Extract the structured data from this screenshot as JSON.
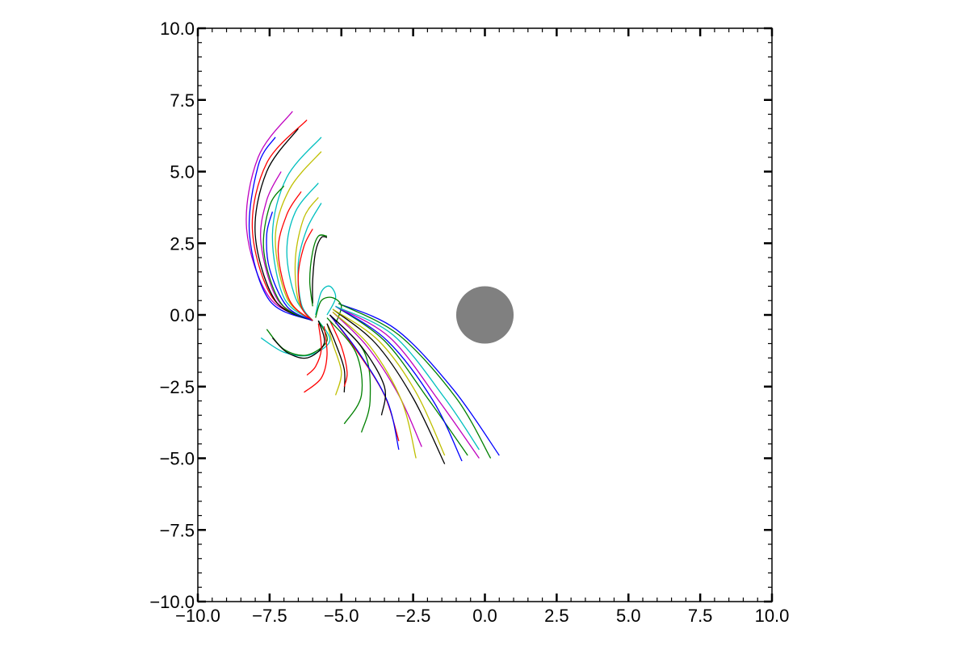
{
  "chart_data": {
    "type": "line",
    "title": "",
    "xlabel": "",
    "ylabel": "",
    "xlim": [
      -10,
      10
    ],
    "ylim": [
      -10,
      10
    ],
    "grid": false,
    "legend": "none",
    "x_ticks": [
      "−10.0",
      "−7.5",
      "−5.0",
      "−2.5",
      "0.0",
      "2.5",
      "5.0",
      "7.5",
      "10.0"
    ],
    "y_ticks": [
      "−10.0",
      "−7.5",
      "−5.0",
      "−2.5",
      "0.0",
      "2.5",
      "5.0",
      "7.5",
      "10.0"
    ],
    "x_tick_values": [
      -10,
      -7.5,
      -5,
      -2.5,
      0,
      2.5,
      5,
      7.5,
      10
    ],
    "y_tick_values": [
      -10,
      -7.5,
      -5,
      -2.5,
      0,
      2.5,
      5,
      7.5,
      10
    ],
    "central_body": {
      "x": 0,
      "y": 0,
      "radius": 1.0,
      "color": "#808080"
    },
    "colors": [
      "#0000ff",
      "#008000",
      "#ff0000",
      "#00bfbf",
      "#bf00bf",
      "#bfbf00",
      "#000000"
    ],
    "series": [
      {
        "color": "#bf00bf",
        "points": [
          [
            -6.0,
            -0.2
          ],
          [
            -7.5,
            0.6
          ],
          [
            -8.3,
            3.0
          ],
          [
            -7.9,
            5.5
          ],
          [
            -6.7,
            7.1
          ]
        ]
      },
      {
        "color": "#ff0000",
        "points": [
          [
            -6.0,
            -0.2
          ],
          [
            -7.4,
            0.6
          ],
          [
            -8.1,
            3.0
          ],
          [
            -7.6,
            5.3
          ],
          [
            -6.2,
            6.8
          ]
        ]
      },
      {
        "color": "#0000ff",
        "points": [
          [
            -6.0,
            -0.2
          ],
          [
            -7.5,
            0.5
          ],
          [
            -8.2,
            2.8
          ],
          [
            -7.9,
            5.2
          ],
          [
            -7.3,
            6.2
          ]
        ]
      },
      {
        "color": "#000000",
        "points": [
          [
            -6.0,
            -0.2
          ],
          [
            -7.3,
            0.5
          ],
          [
            -8.0,
            2.8
          ],
          [
            -7.6,
            5.0
          ],
          [
            -6.5,
            6.5
          ]
        ]
      },
      {
        "color": "#00bfbf",
        "points": [
          [
            -6.0,
            -0.2
          ],
          [
            -7.0,
            0.6
          ],
          [
            -7.4,
            2.8
          ],
          [
            -6.9,
            4.8
          ],
          [
            -5.7,
            6.2
          ]
        ]
      },
      {
        "color": "#bfbf00",
        "points": [
          [
            -6.0,
            -0.2
          ],
          [
            -6.9,
            0.6
          ],
          [
            -7.3,
            2.7
          ],
          [
            -6.8,
            4.4
          ],
          [
            -5.7,
            5.7
          ]
        ]
      },
      {
        "color": "#bf00bf",
        "points": [
          [
            -6.0,
            -0.2
          ],
          [
            -7.2,
            0.5
          ],
          [
            -7.8,
            2.5
          ],
          [
            -7.6,
            4.0
          ],
          [
            -7.1,
            5.0
          ]
        ]
      },
      {
        "color": "#008000",
        "points": [
          [
            -6.0,
            -0.2
          ],
          [
            -7.1,
            0.4
          ],
          [
            -7.7,
            2.2
          ],
          [
            -7.5,
            3.8
          ],
          [
            -7.0,
            4.5
          ]
        ]
      },
      {
        "color": "#ff0000",
        "points": [
          [
            -6.0,
            -0.2
          ],
          [
            -6.8,
            0.5
          ],
          [
            -7.2,
            2.2
          ],
          [
            -6.9,
            3.5
          ],
          [
            -6.4,
            4.3
          ]
        ]
      },
      {
        "color": "#00bfbf",
        "points": [
          [
            -6.0,
            -0.2
          ],
          [
            -6.6,
            0.6
          ],
          [
            -6.9,
            2.2
          ],
          [
            -6.6,
            3.6
          ],
          [
            -5.8,
            4.6
          ]
        ]
      },
      {
        "color": "#bfbf00",
        "points": [
          [
            -6.0,
            -0.2
          ],
          [
            -6.5,
            0.5
          ],
          [
            -6.6,
            2.0
          ],
          [
            -6.3,
            3.4
          ],
          [
            -5.8,
            4.1
          ]
        ]
      },
      {
        "color": "#00bfbf",
        "points": [
          [
            -6.0,
            -0.2
          ],
          [
            -6.4,
            0.4
          ],
          [
            -6.5,
            1.8
          ],
          [
            -6.2,
            3.0
          ],
          [
            -5.7,
            3.9
          ]
        ]
      },
      {
        "color": "#0000ff",
        "points": [
          [
            -6.0,
            -0.2
          ],
          [
            -6.9,
            0.3
          ],
          [
            -7.5,
            1.6
          ],
          [
            -7.6,
            2.8
          ],
          [
            -7.4,
            3.6
          ]
        ]
      },
      {
        "color": "#ff0000",
        "points": [
          [
            -6.0,
            -0.2
          ],
          [
            -6.4,
            0.3
          ],
          [
            -6.5,
            1.4
          ],
          [
            -6.3,
            2.4
          ],
          [
            -6.0,
            3.0
          ]
        ]
      },
      {
        "color": "#000000",
        "points": [
          [
            -6.0,
            0.4
          ],
          [
            -6.0,
            1.2
          ],
          [
            -5.9,
            2.2
          ],
          [
            -5.7,
            2.7
          ],
          [
            -5.5,
            2.7
          ]
        ]
      },
      {
        "color": "#008000",
        "points": [
          [
            -6.0,
            0.3
          ],
          [
            -6.1,
            1.2
          ],
          [
            -6.0,
            2.2
          ],
          [
            -5.8,
            2.75
          ],
          [
            -5.5,
            2.75
          ]
        ]
      },
      {
        "color": "#00bfbf",
        "points": [
          [
            -5.9,
            0.0
          ],
          [
            -5.7,
            0.8
          ],
          [
            -5.4,
            1.0
          ],
          [
            -5.2,
            0.6
          ],
          [
            -5.5,
            0.0
          ]
        ]
      },
      {
        "color": "#008000",
        "points": [
          [
            -5.9,
            -0.1
          ],
          [
            -5.7,
            0.5
          ],
          [
            -5.3,
            0.6
          ],
          [
            -5.0,
            0.3
          ],
          [
            -5.2,
            -0.3
          ]
        ]
      },
      {
        "color": "#00bfbf",
        "points": [
          [
            -5.8,
            -0.2
          ],
          [
            -5.4,
            -0.9
          ],
          [
            -6.1,
            -1.4
          ],
          [
            -7.0,
            -1.3
          ],
          [
            -7.8,
            -0.8
          ]
        ]
      },
      {
        "color": "#008000",
        "points": [
          [
            -5.8,
            -0.2
          ],
          [
            -5.5,
            -0.9
          ],
          [
            -6.2,
            -1.4
          ],
          [
            -7.0,
            -1.2
          ],
          [
            -7.6,
            -0.5
          ]
        ]
      },
      {
        "color": "#000000",
        "points": [
          [
            -5.8,
            -0.2
          ],
          [
            -5.6,
            -1.0
          ],
          [
            -6.2,
            -1.5
          ],
          [
            -6.9,
            -1.3
          ],
          [
            -7.4,
            -0.8
          ]
        ]
      },
      {
        "color": "#ff0000",
        "points": [
          [
            -5.8,
            -0.3
          ],
          [
            -5.7,
            -1.2
          ],
          [
            -5.9,
            -1.8
          ],
          [
            -6.2,
            -2.1
          ]
        ]
      },
      {
        "color": "#ff0000",
        "points": [
          [
            -5.6,
            -0.4
          ],
          [
            -5.5,
            -1.4
          ],
          [
            -5.7,
            -2.2
          ],
          [
            -6.3,
            -2.7
          ]
        ]
      },
      {
        "color": "#bfbf00",
        "points": [
          [
            -5.5,
            -0.3
          ],
          [
            -5.3,
            -1.0
          ],
          [
            -5.0,
            -2.0
          ],
          [
            -5.2,
            -2.8
          ]
        ]
      },
      {
        "color": "#000000",
        "points": [
          [
            -5.5,
            -0.3
          ],
          [
            -5.2,
            -1.0
          ],
          [
            -4.9,
            -1.9
          ],
          [
            -4.9,
            -2.7
          ]
        ]
      },
      {
        "color": "#ff0000",
        "points": [
          [
            -5.4,
            -0.2
          ],
          [
            -5.0,
            -1.1
          ],
          [
            -4.8,
            -2.0
          ],
          [
            -4.9,
            -2.5
          ]
        ]
      },
      {
        "color": "#008000",
        "points": [
          [
            -5.5,
            -0.1
          ],
          [
            -4.5,
            -1.3
          ],
          [
            -4.3,
            -2.8
          ],
          [
            -4.9,
            -3.8
          ]
        ]
      },
      {
        "color": "#008000",
        "points": [
          [
            -5.4,
            0.0
          ],
          [
            -4.2,
            -1.3
          ],
          [
            -4.0,
            -3.0
          ],
          [
            -4.3,
            -4.1
          ]
        ]
      },
      {
        "color": "#ff0000",
        "points": [
          [
            -5.4,
            0.0
          ],
          [
            -4.5,
            -1.2
          ],
          [
            -3.5,
            -2.8
          ],
          [
            -3.0,
            -4.4
          ]
        ]
      },
      {
        "color": "#0000ff",
        "points": [
          [
            -5.4,
            0.0
          ],
          [
            -4.4,
            -1.3
          ],
          [
            -3.4,
            -3.0
          ],
          [
            -3.0,
            -4.7
          ]
        ]
      },
      {
        "color": "#000000",
        "points": [
          [
            -5.4,
            0.0
          ],
          [
            -4.3,
            -1.1
          ],
          [
            -3.5,
            -2.5
          ],
          [
            -3.6,
            -3.5
          ]
        ]
      },
      {
        "color": "#bf00bf",
        "points": [
          [
            -5.3,
            0.1
          ],
          [
            -4.1,
            -1.1
          ],
          [
            -3.0,
            -2.8
          ],
          [
            -2.2,
            -4.6
          ]
        ]
      },
      {
        "color": "#bfbf00",
        "points": [
          [
            -5.3,
            0.1
          ],
          [
            -4.0,
            -1.1
          ],
          [
            -2.9,
            -3.0
          ],
          [
            -2.4,
            -5.0
          ]
        ]
      },
      {
        "color": "#000000",
        "points": [
          [
            -5.3,
            0.2
          ],
          [
            -3.8,
            -1.0
          ],
          [
            -2.5,
            -2.9
          ],
          [
            -1.4,
            -5.2
          ]
        ]
      },
      {
        "color": "#bfbf00",
        "points": [
          [
            -5.3,
            0.2
          ],
          [
            -3.7,
            -0.9
          ],
          [
            -2.4,
            -2.7
          ],
          [
            -1.4,
            -4.9
          ]
        ]
      },
      {
        "color": "#008000",
        "points": [
          [
            -5.2,
            0.3
          ],
          [
            -3.5,
            -0.9
          ],
          [
            -2.0,
            -2.9
          ],
          [
            -0.6,
            -4.9
          ]
        ]
      },
      {
        "color": "#0000ff",
        "points": [
          [
            -5.2,
            0.3
          ],
          [
            -3.4,
            -0.9
          ],
          [
            -1.8,
            -3.0
          ],
          [
            -0.8,
            -5.1
          ]
        ]
      },
      {
        "color": "#bf00bf",
        "points": [
          [
            -5.2,
            0.3
          ],
          [
            -3.3,
            -0.8
          ],
          [
            -1.6,
            -3.0
          ],
          [
            -0.2,
            -5.0
          ]
        ]
      },
      {
        "color": "#00bfbf",
        "points": [
          [
            -5.2,
            0.3
          ],
          [
            -3.2,
            -0.7
          ],
          [
            -1.4,
            -2.9
          ],
          [
            -0.2,
            -4.7
          ]
        ]
      },
      {
        "color": "#0000ff",
        "points": [
          [
            -5.1,
            0.4
          ],
          [
            -3.1,
            -0.5
          ],
          [
            -1.1,
            -2.6
          ],
          [
            0.5,
            -4.9
          ]
        ]
      },
      {
        "color": "#008000",
        "points": [
          [
            -5.1,
            0.4
          ],
          [
            -3.0,
            -0.7
          ],
          [
            -1.0,
            -2.9
          ],
          [
            0.2,
            -5.0
          ]
        ]
      }
    ]
  }
}
